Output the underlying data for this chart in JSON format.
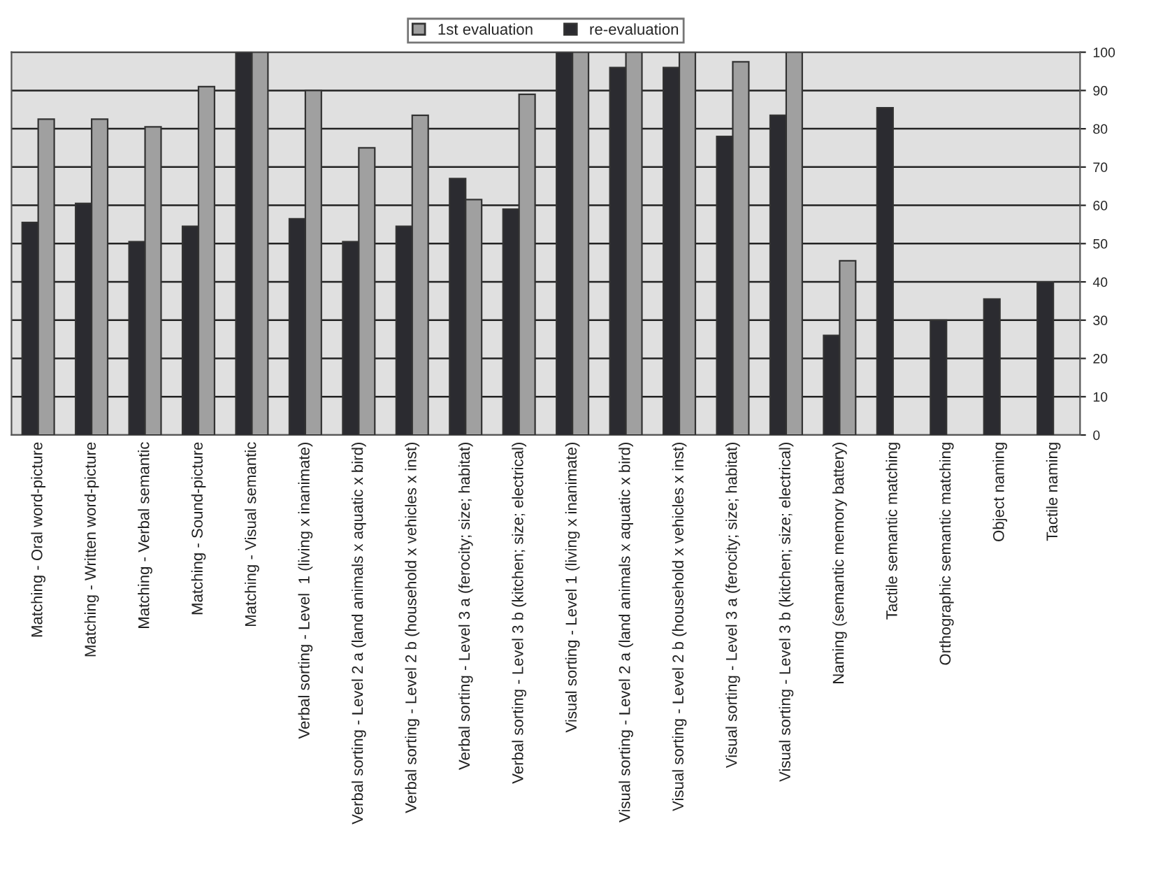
{
  "chart_data": {
    "type": "bar",
    "categories": [
      "Matching - Oral word-picture",
      "Matching - Written word-picture",
      "Matching - Verbal semantic",
      "Matching - Sound-picture",
      "Matching - Visual semantic",
      "Verbal sorting - Level  1 (living x inanimate)",
      "Verbal sorting - Level 2 a (land animals x aquatic x bird)",
      "Verbal sorting - Level 2 b (household x vehicles x inst)",
      "Verbal sorting - Level 3 a (ferocity; size; habitat)",
      "Verbal sorting - Level 3 b (kitchen; size; electrical)",
      "Visual sorting - Level 1 (living x inanimate)",
      "Visual sorting - Level 2 a (land animals x aquatic x bird)",
      "Visual sorting - Level 2 b (household x vehicles x inst)",
      "Visual sorting - Level 3 a (ferocity; size; habitat)",
      "Visual sorting - Level 3 b (kitchen; size; electrical)",
      "Naming (semantic memory battery)",
      "Tactile semantic matching",
      "Orthographic semantic matching",
      "Object naming",
      "Tactile naming"
    ],
    "series": [
      {
        "name": "re-evaluation",
        "color": "#2b2b30",
        "values": [
          55.5,
          60.5,
          50.5,
          54.5,
          100,
          56.5,
          50.5,
          54.5,
          67,
          59,
          100,
          96,
          96,
          78,
          83.5,
          26,
          85.5,
          30,
          35.5,
          40
        ]
      },
      {
        "name": "1st evaluation",
        "color": "#a0a0a0",
        "values": [
          82.5,
          82.5,
          80.5,
          91,
          100,
          90,
          75,
          83.5,
          61.5,
          89,
          100,
          100,
          100,
          97.5,
          100,
          45.5,
          null,
          null,
          null,
          null
        ]
      }
    ],
    "ylim": [
      0,
      100
    ],
    "yticks": [
      0,
      10,
      20,
      30,
      40,
      50,
      60,
      70,
      80,
      90,
      100
    ],
    "grid": "y",
    "legend": "top"
  }
}
